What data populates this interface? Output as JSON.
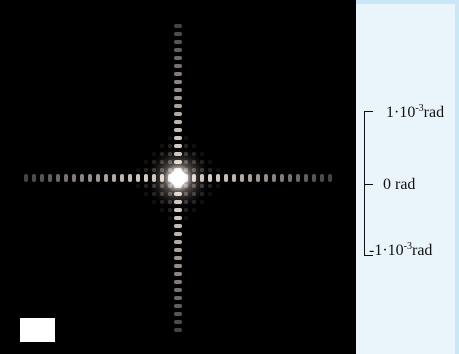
{
  "colors": {
    "page_background": "#e9f4fb",
    "band_color": "#c9e7f6",
    "plot_background": "#000000",
    "scalebox": "#ffffff"
  },
  "diffraction_pattern": {
    "center_color": "#ffffff",
    "orders_visible": 19
  },
  "axis": {
    "ticks": [
      {
        "prefix": "1·10",
        "exponent": "-3",
        "suffix": "rad"
      },
      {
        "prefix": "0 rad",
        "exponent": "",
        "suffix": ""
      },
      {
        "prefix": "-1·10",
        "exponent": "-3",
        "suffix": "rad"
      }
    ]
  }
}
